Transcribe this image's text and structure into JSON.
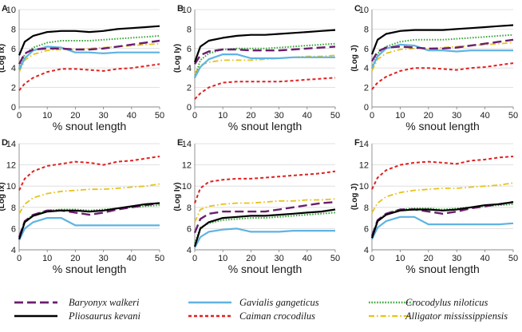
{
  "colors": {
    "Baryonyx walkeri": "#6b1e6e",
    "Pliosaurus kevani": "#000000",
    "Gavialis gangeticus": "#5fb3e3",
    "Caiman crocodilus": "#e02020",
    "Crocodylus niloticus": "#3aa83a",
    "Alligator mississippiensis": "#e8c21a"
  },
  "legend": [
    {
      "name": "Baryonyx walkeri",
      "style": "longdash"
    },
    {
      "name": "Pliosaurus kevani",
      "style": "solid"
    },
    {
      "name": "Gavialis gangeticus",
      "style": "solid"
    },
    {
      "name": "Caiman crocodilus",
      "style": "dash"
    },
    {
      "name": "Crocodylus niloticus",
      "style": "dot"
    },
    {
      "name": "Alligator mississippiensis",
      "style": "dashdot"
    }
  ],
  "chart_data": [
    {
      "type": "line",
      "panel_label": "A",
      "xlabel": "% snout length",
      "ylabel": "(Log Ix)",
      "x": [
        0,
        2,
        5,
        10,
        15,
        20,
        25,
        30,
        35,
        40,
        45,
        50
      ],
      "xlim": [
        0,
        50
      ],
      "ylim": [
        0,
        10
      ],
      "yticks": [
        0,
        2,
        4,
        6,
        8,
        10
      ],
      "series": [
        {
          "name": "Pliosaurus kevani",
          "values": [
            5.3,
            6.7,
            7.3,
            7.7,
            7.8,
            7.8,
            7.7,
            7.8,
            8.0,
            8.1,
            8.2,
            8.3
          ]
        },
        {
          "name": "Baryonyx walkeri",
          "values": [
            4.4,
            5.5,
            5.9,
            6.0,
            6.0,
            5.9,
            5.9,
            6.0,
            6.2,
            6.4,
            6.6,
            6.8
          ]
        },
        {
          "name": "Gavialis gangeticus",
          "values": [
            3.8,
            5.0,
            5.8,
            6.2,
            6.1,
            5.6,
            5.6,
            5.5,
            5.6,
            5.6,
            5.6,
            5.6
          ]
        },
        {
          "name": "Caiman crocodilus",
          "values": [
            1.7,
            2.4,
            3.0,
            3.6,
            3.9,
            3.9,
            3.8,
            3.7,
            3.9,
            4.0,
            4.2,
            4.4
          ]
        },
        {
          "name": "Crocodylus niloticus",
          "values": [
            3.9,
            5.4,
            6.1,
            6.6,
            6.8,
            6.8,
            6.8,
            6.9,
            7.0,
            7.1,
            7.2,
            7.3
          ]
        },
        {
          "name": "Alligator mississippiensis",
          "values": [
            3.6,
            4.8,
            5.4,
            5.8,
            5.9,
            5.9,
            6.0,
            6.1,
            6.2,
            6.3,
            6.4,
            6.5
          ]
        }
      ]
    },
    {
      "type": "line",
      "panel_label": "B",
      "xlabel": "% snout length",
      "ylabel": "(Log Iy)",
      "x": [
        0,
        2,
        5,
        10,
        15,
        20,
        25,
        30,
        35,
        40,
        45,
        50
      ],
      "xlim": [
        0,
        50
      ],
      "ylim": [
        0,
        10
      ],
      "yticks": [
        0,
        2,
        4,
        6,
        8,
        10
      ],
      "series": [
        {
          "name": "Pliosaurus kevani",
          "values": [
            4.6,
            6.2,
            6.8,
            7.1,
            7.3,
            7.4,
            7.4,
            7.5,
            7.6,
            7.7,
            7.8,
            7.9
          ]
        },
        {
          "name": "Baryonyx walkeri",
          "values": [
            4.4,
            5.3,
            5.7,
            5.9,
            5.9,
            5.8,
            5.8,
            5.8,
            5.9,
            6.0,
            6.1,
            6.2
          ]
        },
        {
          "name": "Gavialis gangeticus",
          "values": [
            3.0,
            4.1,
            4.9,
            5.4,
            5.4,
            5.0,
            5.0,
            5.0,
            5.1,
            5.1,
            5.1,
            5.1
          ]
        },
        {
          "name": "Caiman crocodilus",
          "values": [
            0.8,
            1.4,
            2.0,
            2.5,
            2.6,
            2.6,
            2.6,
            2.6,
            2.7,
            2.8,
            2.9,
            3.0
          ]
        },
        {
          "name": "Crocodylus niloticus",
          "values": [
            3.0,
            4.8,
            5.5,
            5.9,
            6.0,
            6.0,
            6.0,
            6.1,
            6.2,
            6.3,
            6.4,
            6.5
          ]
        },
        {
          "name": "Alligator mississippiensis",
          "values": [
            3.4,
            4.3,
            4.6,
            4.8,
            4.8,
            4.8,
            4.9,
            5.0,
            5.1,
            5.2,
            5.2,
            5.3
          ]
        }
      ]
    },
    {
      "type": "line",
      "panel_label": "C",
      "xlabel": "% snout length",
      "ylabel": "(Log J)",
      "x": [
        0,
        2,
        5,
        10,
        15,
        20,
        25,
        30,
        35,
        40,
        45,
        50
      ],
      "xlim": [
        0,
        50
      ],
      "ylim": [
        0,
        10
      ],
      "yticks": [
        0,
        2,
        4,
        6,
        8,
        10
      ],
      "series": [
        {
          "name": "Pliosaurus kevani",
          "values": [
            5.4,
            6.9,
            7.5,
            7.8,
            7.9,
            7.9,
            7.9,
            8.0,
            8.1,
            8.2,
            8.3,
            8.4
          ]
        },
        {
          "name": "Baryonyx walkeri",
          "values": [
            4.7,
            5.7,
            6.1,
            6.2,
            6.1,
            6.0,
            6.0,
            6.1,
            6.3,
            6.5,
            6.7,
            6.9
          ]
        },
        {
          "name": "Gavialis gangeticus",
          "values": [
            4.0,
            5.2,
            6.0,
            6.4,
            6.3,
            5.8,
            5.8,
            5.7,
            5.8,
            5.8,
            5.8,
            5.8
          ]
        },
        {
          "name": "Caiman crocodilus",
          "values": [
            1.8,
            2.5,
            3.1,
            3.7,
            4.0,
            4.0,
            3.9,
            3.8,
            4.0,
            4.1,
            4.3,
            4.5
          ]
        },
        {
          "name": "Crocodylus niloticus",
          "values": [
            4.0,
            5.5,
            6.2,
            6.7,
            6.9,
            6.9,
            6.9,
            7.0,
            7.1,
            7.2,
            7.3,
            7.4
          ]
        },
        {
          "name": "Alligator mississippiensis",
          "values": [
            3.7,
            4.9,
            5.5,
            5.9,
            6.0,
            6.0,
            6.1,
            6.2,
            6.3,
            6.4,
            6.5,
            6.6
          ]
        }
      ]
    },
    {
      "type": "line",
      "panel_label": "D",
      "xlabel": "% snout length",
      "ylabel": "(Log Ix)",
      "x": [
        0,
        2,
        5,
        10,
        15,
        20,
        25,
        30,
        35,
        40,
        45,
        50
      ],
      "xlim": [
        0,
        50
      ],
      "ylim": [
        4,
        14
      ],
      "yticks": [
        4,
        6,
        8,
        10,
        12,
        14
      ],
      "series": [
        {
          "name": "Pliosaurus kevani",
          "values": [
            5.0,
            6.6,
            7.2,
            7.6,
            7.7,
            7.7,
            7.6,
            7.7,
            7.9,
            8.1,
            8.3,
            8.4
          ]
        },
        {
          "name": "Baryonyx walkeri",
          "values": [
            5.2,
            6.7,
            7.3,
            7.7,
            7.7,
            7.5,
            7.3,
            7.5,
            7.8,
            8.0,
            8.2,
            8.4
          ]
        },
        {
          "name": "Gavialis gangeticus",
          "values": [
            4.9,
            6.0,
            6.6,
            7.0,
            7.0,
            6.3,
            6.3,
            6.3,
            6.3,
            6.3,
            6.3,
            6.3
          ]
        },
        {
          "name": "Caiman crocodilus",
          "values": [
            9.6,
            10.7,
            11.4,
            11.9,
            12.1,
            12.3,
            12.2,
            12.0,
            12.3,
            12.4,
            12.6,
            12.8
          ]
        },
        {
          "name": "Crocodylus niloticus",
          "values": [
            5.1,
            6.7,
            7.3,
            7.7,
            7.8,
            7.8,
            7.7,
            7.8,
            7.9,
            8.0,
            8.1,
            8.2
          ]
        },
        {
          "name": "Alligator mississippiensis",
          "values": [
            7.4,
            8.3,
            8.9,
            9.3,
            9.5,
            9.6,
            9.7,
            9.7,
            9.8,
            9.9,
            10.0,
            10.2
          ]
        }
      ]
    },
    {
      "type": "line",
      "panel_label": "E",
      "xlabel": "% snout length",
      "ylabel": "(Log Iy)",
      "x": [
        0,
        2,
        5,
        10,
        15,
        20,
        25,
        30,
        35,
        40,
        45,
        50
      ],
      "xlim": [
        0,
        50
      ],
      "ylim": [
        4,
        14
      ],
      "yticks": [
        4,
        6,
        8,
        10,
        12,
        14
      ],
      "series": [
        {
          "name": "Pliosaurus kevani",
          "values": [
            4.3,
            6.0,
            6.6,
            7.0,
            7.1,
            7.2,
            7.2,
            7.3,
            7.4,
            7.5,
            7.6,
            7.8
          ]
        },
        {
          "name": "Baryonyx walkeri",
          "values": [
            5.6,
            6.9,
            7.4,
            7.6,
            7.6,
            7.6,
            7.6,
            7.8,
            8.0,
            8.2,
            8.4,
            8.5
          ]
        },
        {
          "name": "Gavialis gangeticus",
          "values": [
            4.2,
            5.2,
            5.7,
            5.9,
            6.0,
            5.7,
            5.7,
            5.7,
            5.8,
            5.8,
            5.8,
            5.8
          ]
        },
        {
          "name": "Caiman crocodilus",
          "values": [
            8.4,
            9.8,
            10.4,
            10.6,
            10.7,
            10.7,
            10.8,
            10.9,
            11.0,
            11.1,
            11.2,
            11.4
          ]
        },
        {
          "name": "Crocodylus niloticus",
          "values": [
            4.6,
            6.1,
            6.5,
            6.8,
            6.9,
            7.0,
            7.0,
            7.1,
            7.2,
            7.3,
            7.4,
            7.5
          ]
        },
        {
          "name": "Alligator mississippiensis",
          "values": [
            6.6,
            7.8,
            8.1,
            8.3,
            8.4,
            8.4,
            8.5,
            8.6,
            8.6,
            8.7,
            8.7,
            8.8
          ]
        }
      ]
    },
    {
      "type": "line",
      "panel_label": "F",
      "xlabel": "% snout length",
      "ylabel": "(Log J)",
      "x": [
        0,
        2,
        5,
        10,
        15,
        20,
        25,
        30,
        35,
        40,
        45,
        50
      ],
      "xlim": [
        0,
        50
      ],
      "ylim": [
        4,
        14
      ],
      "yticks": [
        4,
        6,
        8,
        10,
        12,
        14
      ],
      "series": [
        {
          "name": "Pliosaurus kevani",
          "values": [
            5.1,
            6.7,
            7.3,
            7.7,
            7.8,
            7.8,
            7.7,
            7.8,
            8.0,
            8.2,
            8.3,
            8.5
          ]
        },
        {
          "name": "Baryonyx walkeri",
          "values": [
            5.3,
            6.8,
            7.4,
            7.8,
            7.8,
            7.6,
            7.4,
            7.6,
            7.9,
            8.1,
            8.3,
            8.5
          ]
        },
        {
          "name": "Gavialis gangeticus",
          "values": [
            5.0,
            6.1,
            6.7,
            7.1,
            7.1,
            6.4,
            6.4,
            6.4,
            6.4,
            6.4,
            6.4,
            6.5
          ]
        },
        {
          "name": "Caiman crocodilus",
          "values": [
            9.7,
            10.8,
            11.5,
            12.0,
            12.2,
            12.3,
            12.2,
            12.1,
            12.4,
            12.5,
            12.7,
            12.8
          ]
        },
        {
          "name": "Crocodylus niloticus",
          "values": [
            5.2,
            6.8,
            7.4,
            7.8,
            7.9,
            7.9,
            7.8,
            7.9,
            8.0,
            8.1,
            8.2,
            8.3
          ]
        },
        {
          "name": "Alligator mississippiensis",
          "values": [
            7.5,
            8.4,
            9.0,
            9.4,
            9.6,
            9.7,
            9.8,
            9.8,
            9.9,
            10.0,
            10.1,
            10.3
          ]
        }
      ]
    }
  ]
}
